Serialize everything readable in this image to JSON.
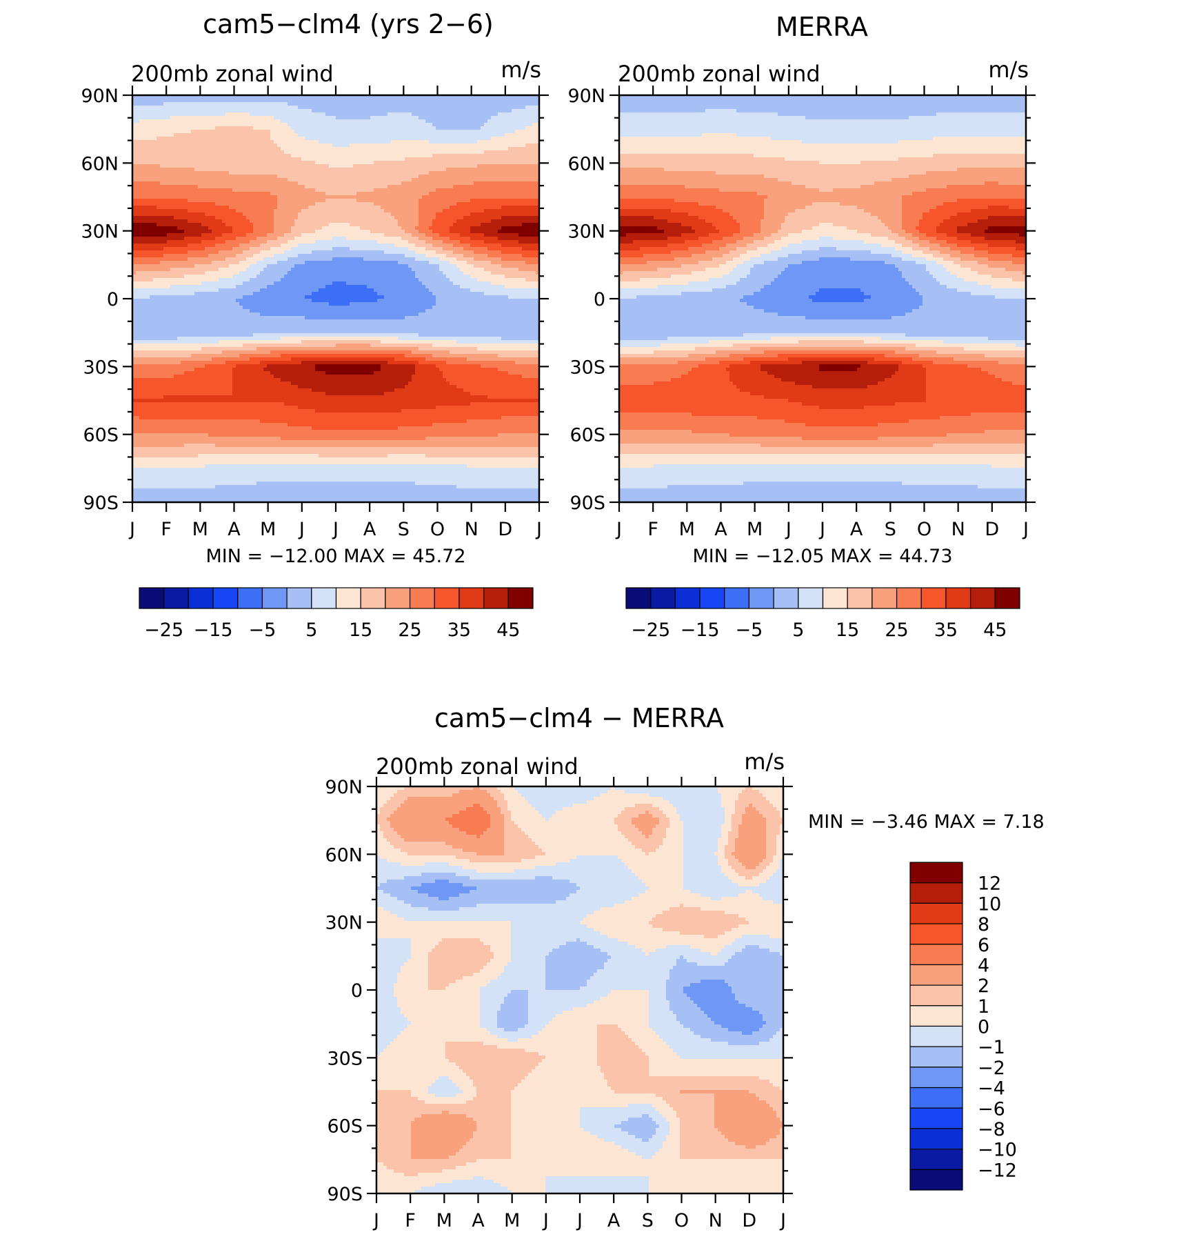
{
  "panels": [
    {
      "id": "model",
      "title": "cam5−clm4 (yrs 2−6)",
      "subtitle": "200mb zonal wind",
      "units": "m/s",
      "minmax": "MIN = −12.00 MAX = 45.72",
      "min": -12.0,
      "max": 45.72
    },
    {
      "id": "obs",
      "title": "MERRA",
      "subtitle": "200mb zonal wind",
      "units": "m/s",
      "minmax": "MIN = −12.05 MAX = 44.73",
      "min": -12.05,
      "max": 44.73
    },
    {
      "id": "diff",
      "title": "cam5−clm4 − MERRA",
      "subtitle": "200mb zonal wind",
      "units": "m/s",
      "minmax": "MIN = −3.46 MAX = 7.18",
      "min": -3.46,
      "max": 7.18
    }
  ],
  "axes": {
    "x_ticks": [
      "J",
      "F",
      "M",
      "A",
      "M",
      "J",
      "J",
      "A",
      "S",
      "O",
      "N",
      "D",
      "J"
    ],
    "y_ticks": [
      "90N",
      "60N",
      "30N",
      "0",
      "30S",
      "60S",
      "90S"
    ],
    "x_range": [
      0,
      12
    ],
    "y_range": [
      -90,
      90
    ]
  },
  "colorbars": {
    "full": {
      "levels": [
        -30,
        -25,
        -20,
        -15,
        -10,
        -5,
        0,
        5,
        10,
        15,
        20,
        25,
        30,
        35,
        40,
        45
      ],
      "labels": [
        "−25",
        "−15",
        "−5",
        "5",
        "15",
        "25",
        "35",
        "45"
      ],
      "colors": [
        "#0a0c78",
        "#0b1aa3",
        "#0b2fd6",
        "#1747f5",
        "#3c6ff5",
        "#6f97f5",
        "#a6bff5",
        "#d3e2f7",
        "#fde5d4",
        "#fbc3a9",
        "#f9a07c",
        "#f87b51",
        "#f7552c",
        "#e13a16",
        "#b61e0c",
        "#800000"
      ]
    },
    "diff": {
      "levels": [
        -12,
        -10,
        -8,
        -6,
        -4,
        -2,
        -1,
        0,
        1,
        2,
        4,
        6,
        8,
        10,
        12
      ],
      "labels": [
        "12",
        "10",
        "8",
        "6",
        "4",
        "2",
        "1",
        "0",
        "−1",
        "−2",
        "−4",
        "−6",
        "−8",
        "−10",
        "−12"
      ],
      "colors": [
        "#0a0c78",
        "#0b1aa3",
        "#0b2fd6",
        "#1747f5",
        "#3c6ff5",
        "#6f97f5",
        "#a6bff5",
        "#d3e2f7",
        "#fde5d4",
        "#fbc3a9",
        "#f9a07c",
        "#f87b51",
        "#f7552c",
        "#e13a16",
        "#b61e0c",
        "#800000"
      ]
    }
  },
  "chart_data": [
    {
      "type": "heatmap",
      "title": "cam5−clm4 (yrs 2−6)",
      "subtitle": "200mb zonal wind",
      "units": "m/s",
      "x": [
        "J",
        "F",
        "M",
        "A",
        "M",
        "J",
        "J",
        "A",
        "S",
        "O",
        "N",
        "D",
        "J"
      ],
      "y": [
        90,
        75,
        60,
        45,
        30,
        15,
        0,
        -15,
        -30,
        -45,
        -60,
        -75,
        -90
      ],
      "values": [
        [
          -3,
          -3,
          -3,
          -2,
          -2,
          -2,
          -2,
          -2,
          -2,
          -2,
          -2,
          -3,
          -3
        ],
        [
          7,
          9,
          10,
          11,
          10,
          3,
          1,
          1,
          2,
          0,
          -1,
          3,
          7
        ],
        [
          15,
          14,
          13,
          12,
          12,
          11,
          9,
          10,
          11,
          13,
          14,
          15,
          15
        ],
        [
          24,
          24,
          23,
          22,
          21,
          17,
          15,
          16,
          18,
          22,
          24,
          25,
          24
        ],
        [
          45,
          43,
          38,
          30,
          22,
          12,
          8,
          10,
          15,
          28,
          36,
          42,
          45
        ],
        [
          20,
          18,
          15,
          10,
          0,
          -6,
          -8,
          -8,
          -6,
          0,
          10,
          16,
          20
        ],
        [
          0,
          -2,
          -3,
          -5,
          -8,
          -10,
          -12,
          -11,
          -9,
          -5,
          -3,
          -1,
          0
        ],
        [
          -5,
          -5,
          -4,
          -3,
          -2,
          -1,
          -1,
          -1,
          -2,
          -3,
          -4,
          -5,
          -5
        ],
        [
          22,
          22,
          25,
          30,
          36,
          40,
          42,
          42,
          38,
          30,
          26,
          24,
          22
        ],
        [
          30,
          31,
          31,
          30,
          30,
          32,
          34,
          34,
          33,
          32,
          31,
          30,
          30
        ],
        [
          20,
          20,
          20,
          21,
          22,
          23,
          24,
          24,
          23,
          22,
          21,
          20,
          20
        ],
        [
          5,
          5,
          4,
          3,
          2,
          2,
          2,
          2,
          2,
          3,
          4,
          5,
          5
        ],
        [
          -3,
          -3,
          -3,
          -3,
          -3,
          -3,
          -3,
          -3,
          -3,
          -3,
          -3,
          -3,
          -3
        ]
      ],
      "xlim": [
        0,
        12
      ],
      "ylim": [
        -90,
        90
      ]
    },
    {
      "type": "heatmap",
      "title": "MERRA",
      "subtitle": "200mb zonal wind",
      "units": "m/s",
      "x": [
        "J",
        "F",
        "M",
        "A",
        "M",
        "J",
        "J",
        "A",
        "S",
        "O",
        "N",
        "D",
        "J"
      ],
      "y": [
        90,
        75,
        60,
        45,
        30,
        15,
        0,
        -15,
        -30,
        -45,
        -60,
        -75,
        -90
      ],
      "values": [
        [
          -3,
          -3,
          -3,
          -3,
          -3,
          -3,
          -3,
          -3,
          -3,
          -3,
          -3,
          -3,
          -3
        ],
        [
          3,
          3,
          3,
          4,
          3,
          2,
          1,
          1,
          1,
          2,
          3,
          3,
          3
        ],
        [
          13,
          13,
          13,
          12,
          12,
          11,
          10,
          10,
          11,
          12,
          13,
          13,
          13
        ],
        [
          24,
          24,
          23,
          22,
          21,
          18,
          16,
          17,
          19,
          22,
          24,
          25,
          24
        ],
        [
          43,
          42,
          37,
          30,
          22,
          12,
          8,
          10,
          15,
          28,
          36,
          42,
          43
        ],
        [
          20,
          18,
          15,
          10,
          0,
          -5,
          -8,
          -8,
          -6,
          0,
          10,
          16,
          20
        ],
        [
          0,
          -2,
          -3,
          -4,
          -6,
          -9,
          -11,
          -11,
          -9,
          -5,
          -3,
          -1,
          0
        ],
        [
          -5,
          -5,
          -4,
          -3,
          -2,
          -1,
          -1,
          -1,
          -2,
          -3,
          -4,
          -5,
          -5
        ],
        [
          21,
          21,
          24,
          29,
          35,
          39,
          41,
          41,
          37,
          30,
          26,
          24,
          21
        ],
        [
          28,
          29,
          29,
          29,
          29,
          30,
          32,
          32,
          31,
          30,
          29,
          28,
          28
        ],
        [
          19,
          19,
          19,
          20,
          21,
          22,
          23,
          23,
          22,
          21,
          20,
          19,
          19
        ],
        [
          4,
          4,
          3,
          3,
          2,
          2,
          2,
          2,
          2,
          3,
          3,
          4,
          4
        ],
        [
          -3,
          -3,
          -3,
          -3,
          -3,
          -3,
          -3,
          -3,
          -3,
          -3,
          -3,
          -3,
          -3
        ]
      ],
      "xlim": [
        0,
        12
      ],
      "ylim": [
        -90,
        90
      ]
    },
    {
      "type": "heatmap",
      "title": "cam5−clm4 − MERRA",
      "subtitle": "200mb zonal wind",
      "units": "m/s",
      "x": [
        "J",
        "F",
        "M",
        "A",
        "M",
        "J",
        "J",
        "A",
        "S",
        "O",
        "N",
        "D",
        "J"
      ],
      "y": [
        90,
        75,
        60,
        45,
        30,
        15,
        0,
        -15,
        -30,
        -45,
        -60,
        -75,
        -90
      ],
      "values": [
        [
          0,
          1,
          1,
          2,
          0,
          -1,
          -1,
          0,
          -1,
          -1,
          0,
          1,
          0
        ],
        [
          1,
          4,
          4,
          6,
          1,
          0,
          1,
          1,
          3,
          0,
          -1,
          3,
          1
        ],
        [
          0,
          1,
          1,
          2,
          2,
          1,
          0,
          0,
          1,
          0,
          0,
          4,
          0
        ],
        [
          -1,
          -2,
          -3,
          -2,
          -2,
          -2,
          -1,
          -1,
          0,
          0,
          -1,
          0,
          -1
        ],
        [
          1,
          0,
          0,
          0,
          0,
          0,
          0,
          1,
          1,
          2,
          2,
          1,
          1
        ],
        [
          -1,
          0,
          2,
          2,
          0,
          -1,
          -2,
          -1,
          0,
          -1,
          0,
          -2,
          -1
        ],
        [
          -1,
          1,
          1,
          0,
          -1,
          -1,
          -1,
          0,
          0,
          -2,
          -3,
          -1,
          -1
        ],
        [
          -1,
          0,
          1,
          0,
          -2,
          0,
          1,
          1,
          0,
          -1,
          -2,
          -3,
          -1
        ],
        [
          0,
          1,
          1,
          2,
          2,
          1,
          0,
          2,
          1,
          0,
          0,
          0,
          0
        ],
        [
          1,
          1,
          -1,
          1,
          1,
          0,
          0,
          1,
          1,
          2,
          2,
          2,
          1
        ],
        [
          2,
          2,
          4,
          2,
          1,
          1,
          0,
          -1,
          -2,
          1,
          2,
          4,
          2
        ],
        [
          1,
          2,
          2,
          1,
          1,
          0,
          1,
          1,
          0,
          1,
          1,
          1,
          1
        ],
        [
          0,
          0,
          -1,
          -1,
          0,
          0,
          -1,
          -1,
          0,
          0,
          0,
          0,
          0
        ]
      ],
      "xlim": [
        0,
        12
      ],
      "ylim": [
        -90,
        90
      ]
    }
  ]
}
